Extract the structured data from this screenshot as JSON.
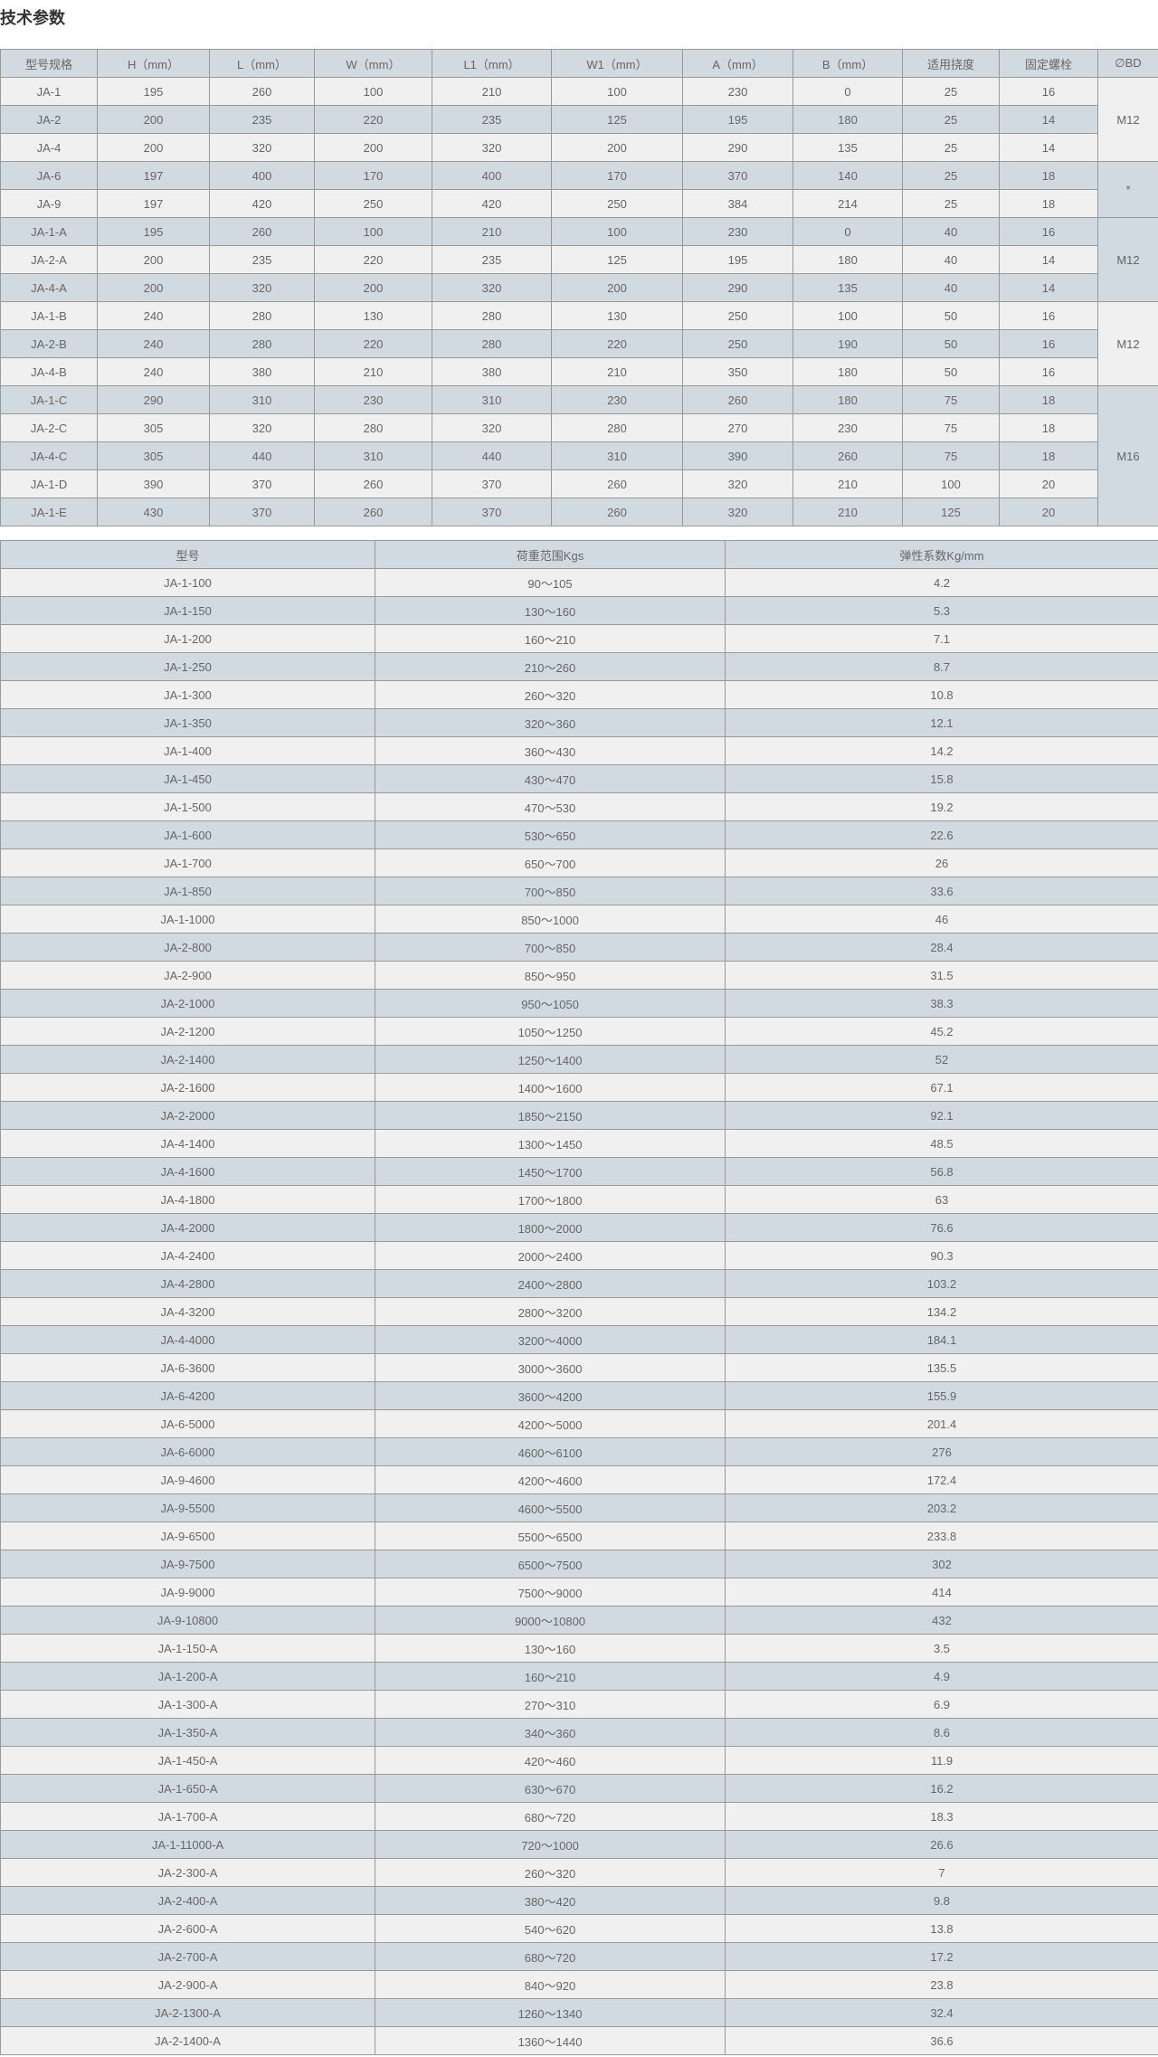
{
  "title": "技术参数",
  "spec_table": {
    "headers": [
      "型号规格",
      "H（mm）",
      "L（mm）",
      "W（mm）",
      "L1（mm）",
      "W1（mm）",
      "A（mm）",
      "B（mm）",
      "适用挠度",
      "固定螺栓",
      "∅BD"
    ],
    "rows": [
      [
        "JA-1",
        "195",
        "260",
        "100",
        "210",
        "100",
        "230",
        "0",
        "25",
        "16"
      ],
      [
        "JA-2",
        "200",
        "235",
        "220",
        "235",
        "125",
        "195",
        "180",
        "25",
        "14"
      ],
      [
        "JA-4",
        "200",
        "320",
        "200",
        "320",
        "200",
        "290",
        "135",
        "25",
        "14"
      ],
      [
        "JA-6",
        "197",
        "400",
        "170",
        "400",
        "170",
        "370",
        "140",
        "25",
        "18"
      ],
      [
        "JA-9",
        "197",
        "420",
        "250",
        "420",
        "250",
        "384",
        "214",
        "25",
        "18"
      ],
      [
        "JA-1-A",
        "195",
        "260",
        "100",
        "210",
        "100",
        "230",
        "0",
        "40",
        "16"
      ],
      [
        "JA-2-A",
        "200",
        "235",
        "220",
        "235",
        "125",
        "195",
        "180",
        "40",
        "14"
      ],
      [
        "JA-4-A",
        "200",
        "320",
        "200",
        "320",
        "200",
        "290",
        "135",
        "40",
        "14"
      ],
      [
        "JA-1-B",
        "240",
        "280",
        "130",
        "280",
        "130",
        "250",
        "100",
        "50",
        "16"
      ],
      [
        "JA-2-B",
        "240",
        "280",
        "220",
        "280",
        "220",
        "250",
        "190",
        "50",
        "16"
      ],
      [
        "JA-4-B",
        "240",
        "380",
        "210",
        "380",
        "210",
        "350",
        "180",
        "50",
        "16"
      ],
      [
        "JA-1-C",
        "290",
        "310",
        "230",
        "310",
        "230",
        "260",
        "180",
        "75",
        "18"
      ],
      [
        "JA-2-C",
        "305",
        "320",
        "280",
        "320",
        "280",
        "270",
        "230",
        "75",
        "18"
      ],
      [
        "JA-4-C",
        "305",
        "440",
        "310",
        "440",
        "310",
        "390",
        "260",
        "75",
        "18"
      ],
      [
        "JA-1-D",
        "390",
        "370",
        "260",
        "370",
        "260",
        "320",
        "210",
        "100",
        "20"
      ],
      [
        "JA-1-E",
        "430",
        "370",
        "260",
        "370",
        "260",
        "320",
        "210",
        "125",
        "20"
      ]
    ],
    "bd_groups": [
      {
        "value": "M12",
        "rows": 3
      },
      {
        "value": "*",
        "rows": 2
      },
      {
        "value": "M12",
        "rows": 3
      },
      {
        "value": "M12",
        "rows": 3
      },
      {
        "value": "M16",
        "rows": 5
      }
    ]
  },
  "load_table": {
    "headers": [
      "型号",
      "荷重范围Kgs",
      "弹性系数Kg/mm"
    ],
    "rows": [
      [
        "JA-1-100",
        "90～105",
        "4.2"
      ],
      [
        "JA-1-150",
        "130～160",
        "5.3"
      ],
      [
        "JA-1-200",
        "160～210",
        "7.1"
      ],
      [
        "JA-1-250",
        "210～260",
        "8.7"
      ],
      [
        "JA-1-300",
        "260～320",
        "10.8"
      ],
      [
        "JA-1-350",
        "320～360",
        "12.1"
      ],
      [
        "JA-1-400",
        "360～430",
        "14.2"
      ],
      [
        "JA-1-450",
        "430～470",
        "15.8"
      ],
      [
        "JA-1-500",
        "470～530",
        "19.2"
      ],
      [
        "JA-1-600",
        "530～650",
        "22.6"
      ],
      [
        "JA-1-700",
        "650～700",
        "26"
      ],
      [
        "JA-1-850",
        "700～850",
        "33.6"
      ],
      [
        "JA-1-1000",
        "850～1000",
        "46"
      ],
      [
        "JA-2-800",
        "700～850",
        "28.4"
      ],
      [
        "JA-2-900",
        "850～950",
        "31.5"
      ],
      [
        "JA-2-1000",
        "950～1050",
        "38.3"
      ],
      [
        "JA-2-1200",
        "1050～1250",
        "45.2"
      ],
      [
        "JA-2-1400",
        "1250～1400",
        "52"
      ],
      [
        "JA-2-1600",
        "1400～1600",
        "67.1"
      ],
      [
        "JA-2-2000",
        "1850～2150",
        "92.1"
      ],
      [
        "JA-4-1400",
        "1300～1450",
        "48.5"
      ],
      [
        "JA-4-1600",
        "1450～1700",
        "56.8"
      ],
      [
        "JA-4-1800",
        "1700～1800",
        "63"
      ],
      [
        "JA-4-2000",
        "1800～2000",
        "76.6"
      ],
      [
        "JA-4-2400",
        "2000～2400",
        "90.3"
      ],
      [
        "JA-4-2800",
        "2400～2800",
        "103.2"
      ],
      [
        "JA-4-3200",
        "2800～3200",
        "134.2"
      ],
      [
        "JA-4-4000",
        "3200～4000",
        "184.1"
      ],
      [
        "JA-6-3600",
        "3000～3600",
        "135.5"
      ],
      [
        "JA-6-4200",
        "3600～4200",
        "155.9"
      ],
      [
        "JA-6-5000",
        "4200～5000",
        "201.4"
      ],
      [
        "JA-6-6000",
        "4600～6100",
        "276"
      ],
      [
        "JA-9-4600",
        "4200～4600",
        "172.4"
      ],
      [
        "JA-9-5500",
        "4600～5500",
        "203.2"
      ],
      [
        "JA-9-6500",
        "5500～6500",
        "233.8"
      ],
      [
        "JA-9-7500",
        "6500～7500",
        "302"
      ],
      [
        "JA-9-9000",
        "7500～9000",
        "414"
      ],
      [
        "JA-9-10800",
        "9000～10800",
        "432"
      ],
      [
        "JA-1-150-A",
        "130～160",
        "3.5"
      ],
      [
        "JA-1-200-A",
        "160～210",
        "4.9"
      ],
      [
        "JA-1-300-A",
        "270～310",
        "6.9"
      ],
      [
        "JA-1-350-A",
        "340～360",
        "8.6"
      ],
      [
        "JA-1-450-A",
        "420～460",
        "11.9"
      ],
      [
        "JA-1-650-A",
        "630～670",
        "16.2"
      ],
      [
        "JA-1-700-A",
        "680～720",
        "18.3"
      ],
      [
        "JA-1-11000-A",
        "720～1000",
        "26.6"
      ],
      [
        "JA-2-300-A",
        "260～320",
        "7"
      ],
      [
        "JA-2-400-A",
        "380～420",
        "9.8"
      ],
      [
        "JA-2-600-A",
        "540～620",
        "13.8"
      ],
      [
        "JA-2-700-A",
        "680～720",
        "17.2"
      ],
      [
        "JA-2-900-A",
        "840～920",
        "23.8"
      ],
      [
        "JA-2-1300-A",
        "1260～1340",
        "32.4"
      ],
      [
        "JA-2-1400-A",
        "1360～1440",
        "36.6"
      ]
    ]
  },
  "colors": {
    "header_bg": "#d1dae1",
    "row_dark": "#d1dae1",
    "row_light": "#f0f0f0",
    "border": "#999999",
    "text": "#666666"
  }
}
